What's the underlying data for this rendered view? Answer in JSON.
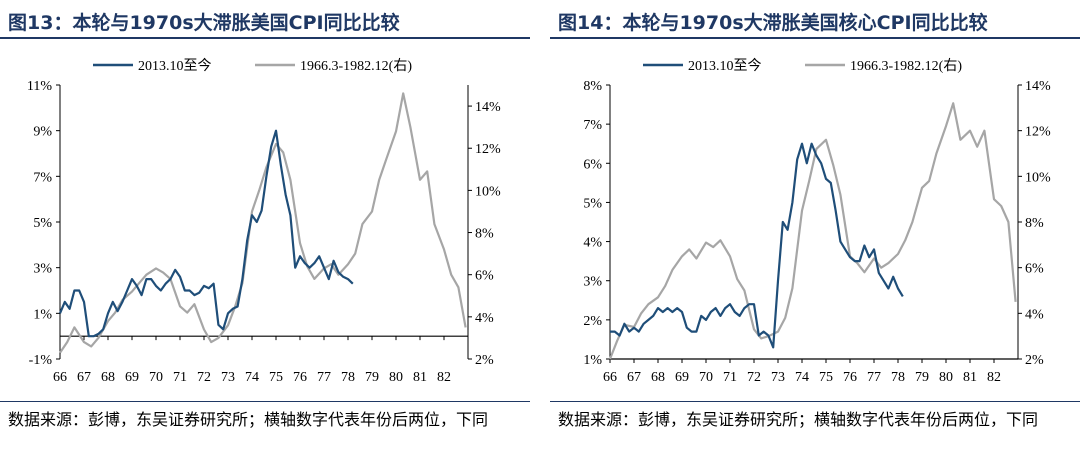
{
  "colors": {
    "primary": "#1f4e79",
    "secondary": "#a6a6a6",
    "title": "#1f3864"
  },
  "panels": [
    {
      "title": "图13：本轮与1970s大滞胀美国CPI同比比较",
      "source": "数据来源：彭博，东吴证券研究所；横轴数字代表年份后两位，下同"
    },
    {
      "title": "图14：本轮与1970s大滞胀美国核心CPI同比比较",
      "source": "数据来源：彭博，东吴证券研究所；横轴数字代表年份后两位，下同"
    }
  ],
  "chart_data": [
    {
      "type": "line",
      "title": "",
      "x_tick_labels": [
        "66",
        "67",
        "68",
        "69",
        "70",
        "71",
        "72",
        "73",
        "74",
        "75",
        "76",
        "77",
        "78",
        "79",
        "80",
        "81",
        "82"
      ],
      "x_range": [
        66,
        83
      ],
      "left_axis": {
        "ticks": [
          -1,
          1,
          3,
          5,
          7,
          9,
          11
        ],
        "labels": [
          "-1%",
          "1%",
          "3%",
          "5%",
          "7%",
          "9%",
          "11%"
        ],
        "range": [
          -1,
          11
        ]
      },
      "right_axis": {
        "ticks": [
          2,
          4,
          6,
          8,
          10,
          12,
          14
        ],
        "labels": [
          "2%",
          "4%",
          "6%",
          "8%",
          "10%",
          "12%",
          "14%"
        ],
        "range": [
          2,
          15
        ]
      },
      "legend_position": "top",
      "series": [
        {
          "name": "2013.10至今",
          "axis": "left",
          "color": "#1f4e79",
          "x": [
            66.0,
            66.2,
            66.4,
            66.6,
            66.8,
            67.0,
            67.2,
            67.4,
            67.6,
            67.8,
            68.0,
            68.2,
            68.4,
            68.6,
            68.8,
            69.0,
            69.2,
            69.4,
            69.6,
            69.8,
            70.0,
            70.2,
            70.4,
            70.6,
            70.8,
            71.0,
            71.2,
            71.4,
            71.6,
            71.8,
            72.0,
            72.2,
            72.4,
            72.6,
            72.8,
            73.0,
            73.2,
            73.4,
            73.6,
            73.8,
            74.0,
            74.2,
            74.4,
            74.6,
            74.8,
            75.0,
            75.2,
            75.4,
            75.6,
            75.8,
            76.0,
            76.2,
            76.4,
            76.6,
            76.8,
            77.0,
            77.2,
            77.4,
            77.6,
            77.8,
            78.0,
            78.2
          ],
          "y": [
            1.0,
            1.5,
            1.2,
            2.0,
            2.0,
            1.5,
            0.0,
            0.0,
            0.1,
            0.3,
            1.0,
            1.5,
            1.1,
            1.5,
            2.0,
            2.5,
            2.2,
            1.8,
            2.5,
            2.5,
            2.2,
            2.0,
            2.3,
            2.5,
            2.9,
            2.6,
            2.0,
            2.0,
            1.8,
            1.9,
            2.2,
            2.1,
            2.3,
            0.5,
            0.3,
            1.0,
            1.2,
            1.3,
            2.5,
            4.2,
            5.3,
            5.0,
            5.5,
            7.0,
            8.3,
            9.0,
            7.5,
            6.2,
            5.3,
            3.0,
            3.5,
            3.2,
            3.0,
            3.2,
            3.5,
            3.0,
            2.5,
            3.3,
            2.8,
            2.6,
            2.5,
            2.3
          ]
        },
        {
          "name": "1966.3-1982.12(右)",
          "axis": "right",
          "color": "#a6a6a6",
          "x": [
            66.0,
            66.3,
            66.6,
            67.0,
            67.3,
            67.6,
            68.0,
            68.3,
            68.6,
            69.0,
            69.3,
            69.6,
            70.0,
            70.3,
            70.6,
            71.0,
            71.3,
            71.6,
            72.0,
            72.3,
            72.6,
            73.0,
            73.3,
            73.6,
            74.0,
            74.3,
            74.6,
            75.0,
            75.3,
            75.6,
            76.0,
            76.3,
            76.6,
            77.0,
            77.3,
            77.6,
            78.0,
            78.3,
            78.6,
            79.0,
            79.3,
            79.6,
            80.0,
            80.3,
            80.6,
            81.0,
            81.3,
            81.6,
            82.0,
            82.3,
            82.6,
            82.9
          ],
          "y": [
            2.3,
            2.8,
            3.5,
            2.8,
            2.6,
            3.0,
            3.8,
            4.2,
            4.8,
            5.2,
            5.6,
            6.0,
            6.3,
            6.1,
            5.8,
            4.5,
            4.2,
            4.6,
            3.4,
            2.8,
            3.0,
            3.6,
            4.5,
            5.6,
            9.0,
            10.0,
            11.1,
            12.2,
            11.8,
            10.5,
            7.5,
            6.4,
            5.8,
            6.3,
            6.5,
            6.0,
            6.5,
            7.0,
            8.4,
            9.0,
            10.5,
            11.5,
            12.8,
            14.6,
            13.0,
            10.5,
            10.9,
            8.4,
            7.2,
            6.0,
            5.4,
            3.5
          ]
        }
      ]
    },
    {
      "type": "line",
      "title": "",
      "x_tick_labels": [
        "66",
        "67",
        "68",
        "69",
        "70",
        "71",
        "72",
        "73",
        "74",
        "75",
        "76",
        "77",
        "78",
        "79",
        "80",
        "81",
        "82"
      ],
      "x_range": [
        66,
        83
      ],
      "left_axis": {
        "ticks": [
          1,
          2,
          3,
          4,
          5,
          6,
          7,
          8
        ],
        "labels": [
          "1%",
          "2%",
          "3%",
          "4%",
          "5%",
          "6%",
          "7%",
          "8%"
        ],
        "range": [
          1,
          8
        ]
      },
      "right_axis": {
        "ticks": [
          2,
          4,
          6,
          8,
          10,
          12,
          14
        ],
        "labels": [
          "2%",
          "4%",
          "6%",
          "8%",
          "10%",
          "12%",
          "14%"
        ],
        "range": [
          2,
          14
        ]
      },
      "legend_position": "top",
      "series": [
        {
          "name": "2013.10至今",
          "axis": "left",
          "color": "#1f4e79",
          "x": [
            66.0,
            66.2,
            66.4,
            66.6,
            66.8,
            67.0,
            67.2,
            67.4,
            67.6,
            67.8,
            68.0,
            68.2,
            68.4,
            68.6,
            68.8,
            69.0,
            69.2,
            69.4,
            69.6,
            69.8,
            70.0,
            70.2,
            70.4,
            70.6,
            70.8,
            71.0,
            71.2,
            71.4,
            71.6,
            71.8,
            72.0,
            72.2,
            72.4,
            72.6,
            72.8,
            73.0,
            73.2,
            73.4,
            73.6,
            73.8,
            74.0,
            74.2,
            74.4,
            74.6,
            74.8,
            75.0,
            75.2,
            75.4,
            75.6,
            75.8,
            76.0,
            76.2,
            76.4,
            76.6,
            76.8,
            77.0,
            77.2,
            77.4,
            77.6,
            77.8,
            78.0,
            78.2
          ],
          "y": [
            1.7,
            1.7,
            1.6,
            1.9,
            1.7,
            1.8,
            1.7,
            1.9,
            2.0,
            2.1,
            2.3,
            2.2,
            2.3,
            2.2,
            2.3,
            2.2,
            1.8,
            1.7,
            1.7,
            2.1,
            2.0,
            2.2,
            2.3,
            2.1,
            2.3,
            2.4,
            2.2,
            2.1,
            2.3,
            2.4,
            2.4,
            1.6,
            1.7,
            1.6,
            1.3,
            3.0,
            4.5,
            4.3,
            5.0,
            6.1,
            6.5,
            6.0,
            6.5,
            6.2,
            6.0,
            5.6,
            5.5,
            4.8,
            4.0,
            3.8,
            3.6,
            3.5,
            3.5,
            3.9,
            3.6,
            3.8,
            3.2,
            3.0,
            2.8,
            3.1,
            2.8,
            2.6
          ]
        },
        {
          "name": "1966.3-1982.12(右)",
          "axis": "right",
          "color": "#a6a6a6",
          "x": [
            66.0,
            66.3,
            66.6,
            67.0,
            67.3,
            67.6,
            68.0,
            68.3,
            68.6,
            69.0,
            69.3,
            69.6,
            70.0,
            70.3,
            70.6,
            71.0,
            71.3,
            71.6,
            72.0,
            72.3,
            72.6,
            73.0,
            73.3,
            73.6,
            74.0,
            74.3,
            74.6,
            75.0,
            75.3,
            75.6,
            76.0,
            76.3,
            76.6,
            77.0,
            77.3,
            77.6,
            78.0,
            78.3,
            78.6,
            79.0,
            79.3,
            79.6,
            80.0,
            80.3,
            80.6,
            81.0,
            81.3,
            81.6,
            82.0,
            82.3,
            82.6,
            82.9
          ],
          "y": [
            2.0,
            2.8,
            3.5,
            3.4,
            4.0,
            4.4,
            4.7,
            5.2,
            5.9,
            6.5,
            6.8,
            6.4,
            7.1,
            6.9,
            7.2,
            6.5,
            5.5,
            5.0,
            3.3,
            2.9,
            3.0,
            3.2,
            3.8,
            5.1,
            8.5,
            9.8,
            11.2,
            11.6,
            10.5,
            9.2,
            6.5,
            6.2,
            5.8,
            6.4,
            6.0,
            6.2,
            6.6,
            7.2,
            8.0,
            9.5,
            9.8,
            11.0,
            12.2,
            13.2,
            11.6,
            12.0,
            11.3,
            12.0,
            9.0,
            8.7,
            8.0,
            4.5
          ]
        }
      ]
    }
  ]
}
